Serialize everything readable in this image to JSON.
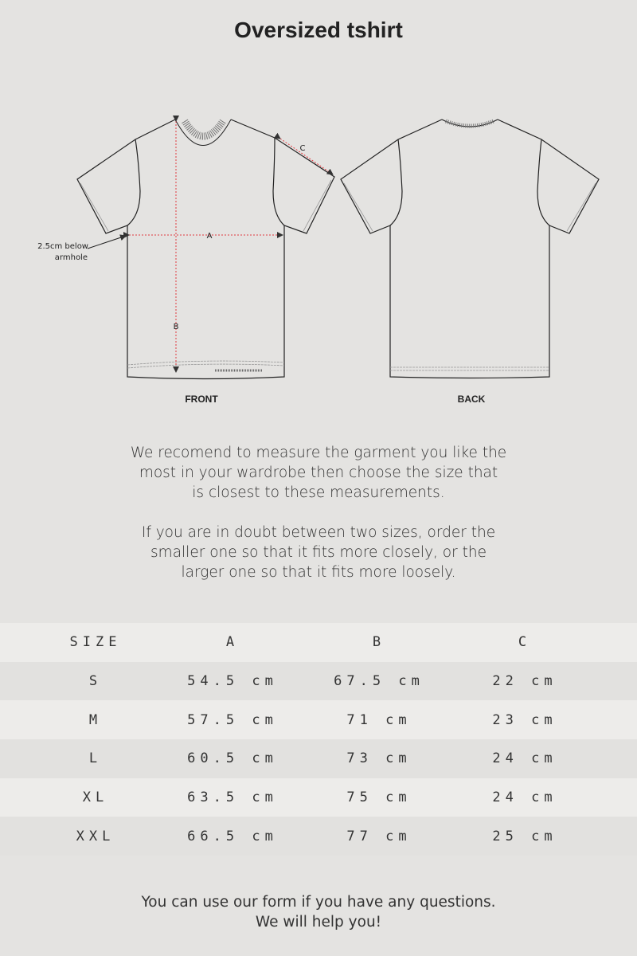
{
  "title": "Oversized tshirt",
  "diagram": {
    "front_label": "FRONT",
    "back_label": "BACK",
    "note": [
      "2.5cm below",
      "armhole"
    ],
    "measure_labels": {
      "a": "A",
      "b": "B",
      "c": "C"
    },
    "measure_color": "#e0393e"
  },
  "intro": [
    "We recomend to measure the garment you like the",
    "most in your wardrobe then choose the size that",
    "is closest to these measurements.",
    "If you are in doubt between two sizes, order the",
    "smaller one so that it fits more closely, or the",
    "larger one so that it fits more loosely."
  ],
  "table": {
    "headers": [
      "SIZE",
      "A",
      "B",
      "C"
    ],
    "rows": [
      [
        "S",
        "54.5 cm",
        "67.5 cm",
        "22 cm"
      ],
      [
        "M",
        "57.5 cm",
        "71 cm",
        "23 cm"
      ],
      [
        "L",
        "60.5 cm",
        "73 cm",
        "24 cm"
      ],
      [
        "XL",
        "63.5 cm",
        "75 cm",
        "24 cm"
      ],
      [
        "XXL",
        "66.5 cm",
        "77 cm",
        "25 cm"
      ]
    ]
  },
  "footer": [
    "You can use our form if you have any questions.",
    "We will help you!"
  ]
}
